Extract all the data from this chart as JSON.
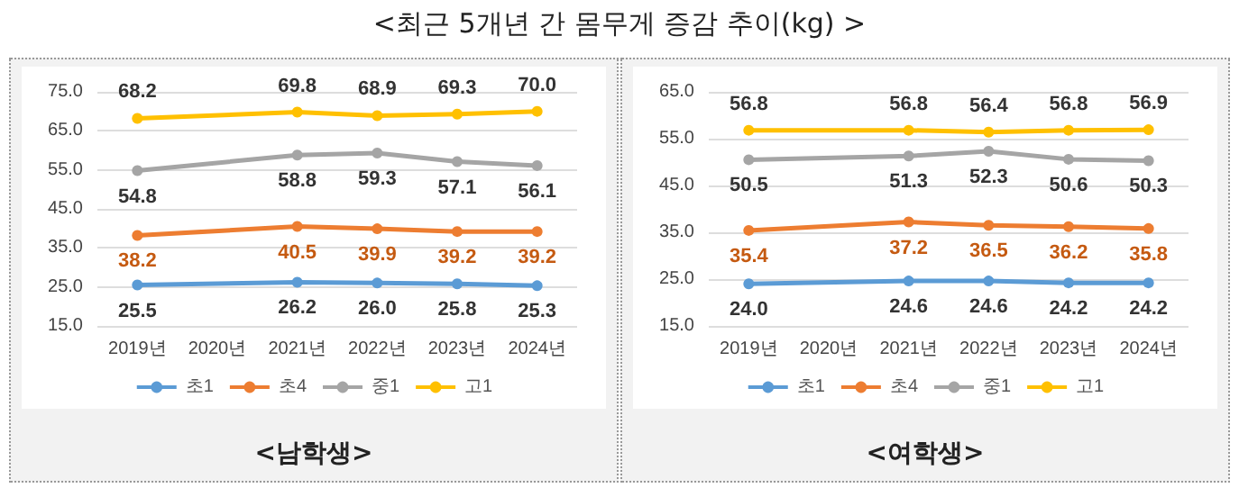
{
  "chart_data": [
    {
      "type": "line",
      "title": "<최근 5개년 간 몸무게 증감 추이(kg) >",
      "xlabel": "<남학생>",
      "categories": [
        "2019년",
        "2020년",
        "2021년",
        "2022년",
        "2023년",
        "2024년"
      ],
      "series": [
        {
          "name": "초1",
          "color": "#5b9bd5",
          "values": [
            25.5,
            null,
            26.2,
            26.0,
            25.8,
            25.3
          ],
          "value_labels": [
            "25.5",
            null,
            "26.2",
            "26.0",
            "25.8",
            "25.3"
          ]
        },
        {
          "name": "초4",
          "color": "#ed7d31",
          "values": [
            38.2,
            null,
            40.5,
            39.9,
            39.2,
            39.2
          ],
          "value_labels": [
            "38.2",
            null,
            "40.5",
            "39.9",
            "39.2",
            "39.2"
          ]
        },
        {
          "name": "중1",
          "color": "#a5a5a5",
          "values": [
            54.8,
            null,
            58.8,
            59.3,
            57.1,
            56.1
          ],
          "value_labels": [
            "54.8",
            null,
            "58.8",
            "59.3",
            "57.1",
            "56.1"
          ]
        },
        {
          "name": "고1",
          "color": "#ffc000",
          "values": [
            68.2,
            null,
            69.8,
            68.9,
            69.3,
            70.0
          ],
          "value_labels": [
            "68.2",
            null,
            "69.8",
            "68.9",
            "69.3",
            "70.0"
          ]
        }
      ],
      "ylim": [
        15,
        75
      ],
      "yticks": [
        {
          "value": 15,
          "label": "15.0"
        },
        {
          "value": 25,
          "label": "25.0"
        },
        {
          "value": 35,
          "label": "35.0"
        },
        {
          "value": 45,
          "label": "45.0"
        },
        {
          "value": 55,
          "label": "55.0"
        },
        {
          "value": 65,
          "label": "65.0"
        },
        {
          "value": 75,
          "label": "75.0"
        }
      ],
      "grid": "y",
      "legend": "bottom",
      "marker": "circle"
    },
    {
      "type": "line",
      "xlabel": "<여학생>",
      "categories": [
        "2019년",
        "2020년",
        "2021년",
        "2022년",
        "2023년",
        "2024년"
      ],
      "series": [
        {
          "name": "초1",
          "color": "#5b9bd5",
          "values": [
            24.0,
            null,
            24.6,
            24.6,
            24.2,
            24.2
          ],
          "value_labels": [
            "24.0",
            null,
            "24.6",
            "24.6",
            "24.2",
            "24.2"
          ]
        },
        {
          "name": "초4",
          "color": "#ed7d31",
          "values": [
            35.4,
            null,
            37.2,
            36.5,
            36.2,
            35.8
          ],
          "value_labels": [
            "35.4",
            null,
            "37.2",
            "36.5",
            "36.2",
            "35.8"
          ]
        },
        {
          "name": "중1",
          "color": "#a5a5a5",
          "values": [
            50.5,
            null,
            51.3,
            52.3,
            50.6,
            50.3
          ],
          "value_labels": [
            "50.5",
            null,
            "51.3",
            "52.3",
            "50.6",
            "50.3"
          ]
        },
        {
          "name": "고1",
          "color": "#ffc000",
          "values": [
            56.8,
            null,
            56.8,
            56.4,
            56.8,
            56.9
          ],
          "value_labels": [
            "56.8",
            null,
            "56.8",
            "56.4",
            "56.8",
            "56.9"
          ]
        }
      ],
      "ylim": [
        15,
        65
      ],
      "yticks": [
        {
          "value": 15,
          "label": "15.0"
        },
        {
          "value": 25,
          "label": "25.0"
        },
        {
          "value": 35,
          "label": "35.0"
        },
        {
          "value": 45,
          "label": "45.0"
        },
        {
          "value": 55,
          "label": "55.0"
        },
        {
          "value": 65,
          "label": "65.0"
        }
      ],
      "grid": "y",
      "legend": "bottom",
      "marker": "circle"
    }
  ]
}
